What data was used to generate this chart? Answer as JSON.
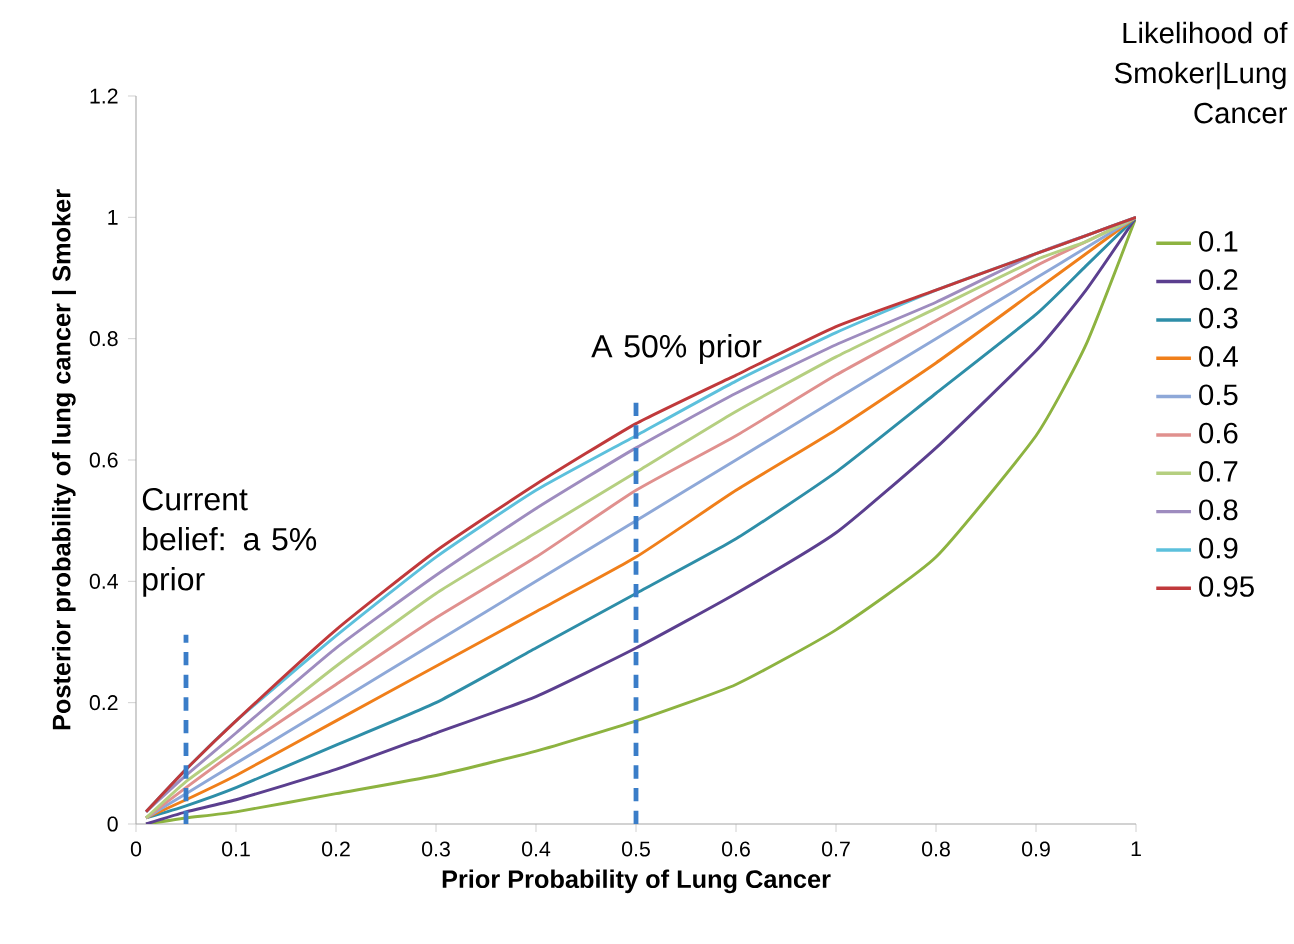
{
  "chart_data": {
    "type": "line",
    "xlabel": "Prior Probability of Lung Cancer",
    "ylabel": "Posterior probability of lung cancer | Smoker",
    "legend_title": "Likelihood of Smoker|Lung Cancer",
    "x": [
      0.01,
      0.05,
      0.1,
      0.2,
      0.3,
      0.4,
      0.5,
      0.6,
      0.7,
      0.8,
      0.9,
      0.95,
      1
    ],
    "series": [
      {
        "name": "0.1",
        "color": "#8db340",
        "values": [
          0.0,
          0.01,
          0.02,
          0.05,
          0.08,
          0.12,
          0.17,
          0.23,
          0.32,
          0.44,
          0.64,
          0.79,
          1
        ]
      },
      {
        "name": "0.2",
        "color": "#5b3f8f",
        "values": [
          0.0,
          0.02,
          0.04,
          0.09,
          0.15,
          0.21,
          0.29,
          0.38,
          0.48,
          0.62,
          0.78,
          0.88,
          1
        ]
      },
      {
        "name": "0.3",
        "color": "#2e8ea8",
        "values": [
          0.01,
          0.03,
          0.06,
          0.13,
          0.2,
          0.29,
          0.38,
          0.47,
          0.58,
          0.71,
          0.84,
          0.92,
          1
        ]
      },
      {
        "name": "0.4",
        "color": "#f07f1a",
        "values": [
          0.01,
          0.04,
          0.08,
          0.17,
          0.26,
          0.35,
          0.44,
          0.55,
          0.65,
          0.76,
          0.88,
          0.94,
          1
        ]
      },
      {
        "name": "0.5",
        "color": "#8ea8d8",
        "values": [
          0.01,
          0.05,
          0.1,
          0.2,
          0.3,
          0.4,
          0.5,
          0.6,
          0.7,
          0.8,
          0.9,
          0.95,
          1
        ]
      },
      {
        "name": "0.6",
        "color": "#e0908e",
        "values": [
          0.01,
          0.06,
          0.12,
          0.23,
          0.34,
          0.44,
          0.55,
          0.64,
          0.74,
          0.83,
          0.92,
          0.96,
          1
        ]
      },
      {
        "name": "0.7",
        "color": "#b5cf80",
        "values": [
          0.01,
          0.07,
          0.13,
          0.26,
          0.38,
          0.48,
          0.58,
          0.68,
          0.77,
          0.85,
          0.93,
          0.96,
          1
        ]
      },
      {
        "name": "0.8",
        "color": "#9e8cbf",
        "values": [
          0.02,
          0.08,
          0.15,
          0.29,
          0.41,
          0.52,
          0.62,
          0.71,
          0.79,
          0.86,
          0.94,
          0.97,
          1
        ]
      },
      {
        "name": "0.9",
        "color": "#5cc0dc",
        "values": [
          0.02,
          0.09,
          0.17,
          0.31,
          0.44,
          0.55,
          0.64,
          0.73,
          0.81,
          0.88,
          0.94,
          0.97,
          1
        ]
      },
      {
        "name": "0.95",
        "color": "#c0393b",
        "values": [
          0.02,
          0.09,
          0.17,
          0.32,
          0.45,
          0.56,
          0.66,
          0.74,
          0.82,
          0.88,
          0.94,
          0.97,
          1
        ]
      }
    ],
    "ref_lines": [
      {
        "axis": "x",
        "value": 0.05,
        "label": "Current belief: a 5% prior",
        "color": "#3a7dc8",
        "line_style": "dashed"
      },
      {
        "axis": "x",
        "value": 0.5,
        "label": "A 50% prior",
        "color": "#3a7dc8",
        "line_style": "dashed"
      }
    ],
    "xlim": [
      0,
      1
    ],
    "xticks": [
      0,
      0.1,
      0.2,
      0.3,
      0.4,
      0.5,
      0.6,
      0.7,
      0.8,
      0.9,
      1
    ],
    "ylim": [
      0,
      1.2
    ],
    "yticks": [
      0,
      0.2,
      0.4,
      0.6,
      0.8,
      1,
      1.2
    ],
    "grid": false,
    "legend": "right",
    "marker": "none",
    "line_style": "solid"
  }
}
